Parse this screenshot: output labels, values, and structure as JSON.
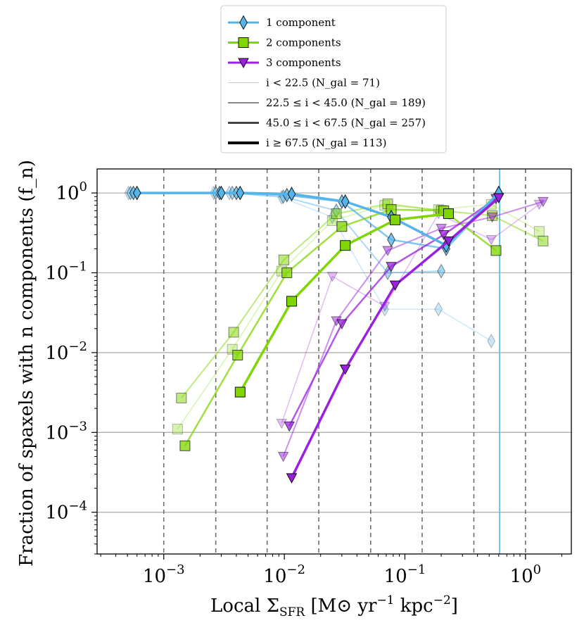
{
  "chart_data": {
    "type": "line",
    "xscale": "log",
    "yscale": "log",
    "xlim": [
      0.00028,
      2.4
    ],
    "ylim": [
      3e-05,
      2.0
    ],
    "xlabel": "Local Σ_SFR [M⊙ yr⁻¹ kpc⁻²]",
    "xlabel_parts": {
      "prefix": "Local Σ",
      "sub": "SFR",
      "units": " [M⊙ yr",
      "exp1": "−1",
      "units2": " kpc",
      "exp2": "−2",
      "close": "]"
    },
    "ylabel": "Fraction of spaxels with n components (f_n)",
    "xticks": [
      {
        "value": 0.001,
        "base": "10",
        "exp": "−3"
      },
      {
        "value": 0.01,
        "base": "10",
        "exp": "−2"
      },
      {
        "value": 0.1,
        "base": "10",
        "exp": "−1"
      },
      {
        "value": 1,
        "base": "10",
        "exp": "0"
      }
    ],
    "yticks": [
      {
        "value": 0.0001,
        "base": "10",
        "exp": "−4"
      },
      {
        "value": 0.001,
        "base": "10",
        "exp": "−3"
      },
      {
        "value": 0.01,
        "base": "10",
        "exp": "−2"
      },
      {
        "value": 0.1,
        "base": "10",
        "exp": "−1"
      },
      {
        "value": 1,
        "base": "10",
        "exp": "0"
      }
    ],
    "bin_edges": [
      0.001,
      0.0027,
      0.0072,
      0.0193,
      0.052,
      0.139,
      0.373,
      1.0
    ],
    "highlight_line": {
      "x": 0.61,
      "color": "#56b4e9"
    },
    "legend": [
      {
        "label": "1 component",
        "color": "#56b4e9",
        "marker": "diamond"
      },
      {
        "label": "2 components",
        "color": "#7fd600",
        "marker": "square"
      },
      {
        "label": "3 components",
        "color": "#9b1fe0",
        "marker": "triangle"
      },
      {
        "label": "i < 22.5 (N_gal = 71)",
        "color": "#c8c8c8",
        "width": 1
      },
      {
        "label": "22.5 ≤ i < 45.0 (N_gal = 189)",
        "color": "#888888",
        "width": 2
      },
      {
        "label": "45.0 ≤ i < 67.5 (N_gal = 257)",
        "color": "#444444",
        "width": 3
      },
      {
        "label": "i ≥ 67.5 (N_gal = 113)",
        "color": "#000000",
        "width": 4
      }
    ],
    "series": [
      {
        "name": "1 component",
        "color": "#56b4e9",
        "marker": "diamond",
        "inc_bin": 0,
        "opacity": 0.3,
        "width": 1.5,
        "points": [
          {
            "x": 0.00051,
            "y": 1.0
          },
          {
            "x": 0.0026,
            "y": 1.0
          },
          {
            "x": 0.0035,
            "y": 1.0
          },
          {
            "x": 0.0095,
            "y": 0.88
          },
          {
            "x": 0.025,
            "y": 0.5
          },
          {
            "x": 0.068,
            "y": 0.035
          },
          {
            "x": 0.19,
            "y": 0.035
          },
          {
            "x": 0.52,
            "y": 0.014
          }
        ]
      },
      {
        "name": "1 component",
        "color": "#56b4e9",
        "marker": "diamond",
        "inc_bin": 1,
        "opacity": 0.5,
        "width": 2,
        "points": [
          {
            "x": 0.00053,
            "y": 1.0
          },
          {
            "x": 0.0027,
            "y": 1.0
          },
          {
            "x": 0.0037,
            "y": 1.0
          },
          {
            "x": 0.0098,
            "y": 0.9
          },
          {
            "x": 0.027,
            "y": 0.6
          },
          {
            "x": 0.072,
            "y": 0.1
          },
          {
            "x": 0.2,
            "y": 0.105
          }
        ]
      },
      {
        "name": "1 component",
        "color": "#56b4e9",
        "marker": "diamond",
        "inc_bin": 2,
        "opacity": 0.75,
        "width": 2.5,
        "points": [
          {
            "x": 0.00056,
            "y": 1.0
          },
          {
            "x": 0.0029,
            "y": 1.0
          },
          {
            "x": 0.004,
            "y": 1.0
          },
          {
            "x": 0.0105,
            "y": 0.94
          },
          {
            "x": 0.03,
            "y": 0.78
          },
          {
            "x": 0.077,
            "y": 0.26
          },
          {
            "x": 0.22,
            "y": 0.2
          },
          {
            "x": 0.6,
            "y": 1.0
          }
        ]
      },
      {
        "name": "1 component",
        "color": "#56b4e9",
        "marker": "diamond",
        "inc_bin": 3,
        "opacity": 1.0,
        "width": 3.5,
        "points": [
          {
            "x": 0.0006,
            "y": 1.0
          },
          {
            "x": 0.003,
            "y": 1.0
          },
          {
            "x": 0.0043,
            "y": 1.0
          },
          {
            "x": 0.0115,
            "y": 0.97
          },
          {
            "x": 0.032,
            "y": 0.78
          },
          {
            "x": 0.077,
            "y": 0.5
          },
          {
            "x": 0.22,
            "y": 0.22
          },
          {
            "x": 0.6,
            "y": 1.0
          }
        ]
      },
      {
        "name": "2 components",
        "color": "#7fd600",
        "marker": "square",
        "inc_bin": 0,
        "opacity": 0.3,
        "width": 1.5,
        "points": [
          {
            "x": 0.0013,
            "y": 0.0011
          },
          {
            "x": 0.0037,
            "y": 0.011
          },
          {
            "x": 0.0095,
            "y": 0.105
          },
          {
            "x": 0.025,
            "y": 0.45
          },
          {
            "x": 0.068,
            "y": 0.7
          },
          {
            "x": 0.19,
            "y": 0.62
          },
          {
            "x": 0.52,
            "y": 0.72
          },
          {
            "x": 1.3,
            "y": 0.33
          }
        ]
      },
      {
        "name": "2 components",
        "color": "#7fd600",
        "marker": "square",
        "inc_bin": 1,
        "opacity": 0.5,
        "width": 2,
        "points": [
          {
            "x": 0.0014,
            "y": 0.0027
          },
          {
            "x": 0.0038,
            "y": 0.018
          },
          {
            "x": 0.0099,
            "y": 0.145
          },
          {
            "x": 0.027,
            "y": 0.55
          },
          {
            "x": 0.072,
            "y": 0.73
          },
          {
            "x": 0.2,
            "y": 0.6
          },
          {
            "x": 0.53,
            "y": 0.52
          },
          {
            "x": 1.4,
            "y": 0.25
          }
        ]
      },
      {
        "name": "2 components",
        "color": "#7fd600",
        "marker": "square",
        "inc_bin": 2,
        "opacity": 0.75,
        "width": 2.5,
        "points": [
          {
            "x": 0.0015,
            "y": 0.00068
          },
          {
            "x": 0.0041,
            "y": 0.0093
          },
          {
            "x": 0.0105,
            "y": 0.1
          },
          {
            "x": 0.03,
            "y": 0.38
          },
          {
            "x": 0.077,
            "y": 0.62
          },
          {
            "x": 0.21,
            "y": 0.6
          },
          {
            "x": 0.57,
            "y": 0.19
          }
        ]
      },
      {
        "name": "2 components",
        "color": "#7fd600",
        "marker": "square",
        "inc_bin": 3,
        "opacity": 1.0,
        "width": 3.5,
        "points": [
          {
            "x": 0.0043,
            "y": 0.0032
          },
          {
            "x": 0.0115,
            "y": 0.044
          },
          {
            "x": 0.032,
            "y": 0.22
          },
          {
            "x": 0.083,
            "y": 0.46
          },
          {
            "x": 0.23,
            "y": 0.55
          }
        ]
      },
      {
        "name": "3 components",
        "color": "#9b1fe0",
        "marker": "triangle",
        "inc_bin": 0,
        "opacity": 0.3,
        "width": 1.5,
        "points": [
          {
            "x": 0.0095,
            "y": 0.0013
          },
          {
            "x": 0.025,
            "y": 0.09
          },
          {
            "x": 0.068,
            "y": 0.038
          },
          {
            "x": 0.19,
            "y": 0.55
          },
          {
            "x": 0.52,
            "y": 0.26
          },
          {
            "x": 1.3,
            "y": 0.72
          }
        ]
      },
      {
        "name": "3 components",
        "color": "#9b1fe0",
        "marker": "triangle",
        "inc_bin": 1,
        "opacity": 0.5,
        "width": 2,
        "points": [
          {
            "x": 0.0098,
            "y": 0.0005
          },
          {
            "x": 0.027,
            "y": 0.025
          },
          {
            "x": 0.072,
            "y": 0.19
          },
          {
            "x": 0.2,
            "y": 0.36
          },
          {
            "x": 0.53,
            "y": 0.5
          },
          {
            "x": 1.4,
            "y": 0.78
          }
        ]
      },
      {
        "name": "3 components",
        "color": "#9b1fe0",
        "marker": "triangle",
        "inc_bin": 2,
        "opacity": 0.75,
        "width": 2.5,
        "points": [
          {
            "x": 0.011,
            "y": 0.0012
          },
          {
            "x": 0.03,
            "y": 0.023
          },
          {
            "x": 0.077,
            "y": 0.12
          },
          {
            "x": 0.21,
            "y": 0.3
          },
          {
            "x": 0.57,
            "y": 0.85
          }
        ]
      },
      {
        "name": "3 components",
        "color": "#9b1fe0",
        "marker": "triangle",
        "inc_bin": 3,
        "opacity": 1.0,
        "width": 3.5,
        "points": [
          {
            "x": 0.0115,
            "y": 0.00027
          },
          {
            "x": 0.032,
            "y": 0.0062
          },
          {
            "x": 0.083,
            "y": 0.07
          },
          {
            "x": 0.23,
            "y": 0.25
          },
          {
            "x": 0.6,
            "y": 0.87
          }
        ]
      }
    ]
  }
}
